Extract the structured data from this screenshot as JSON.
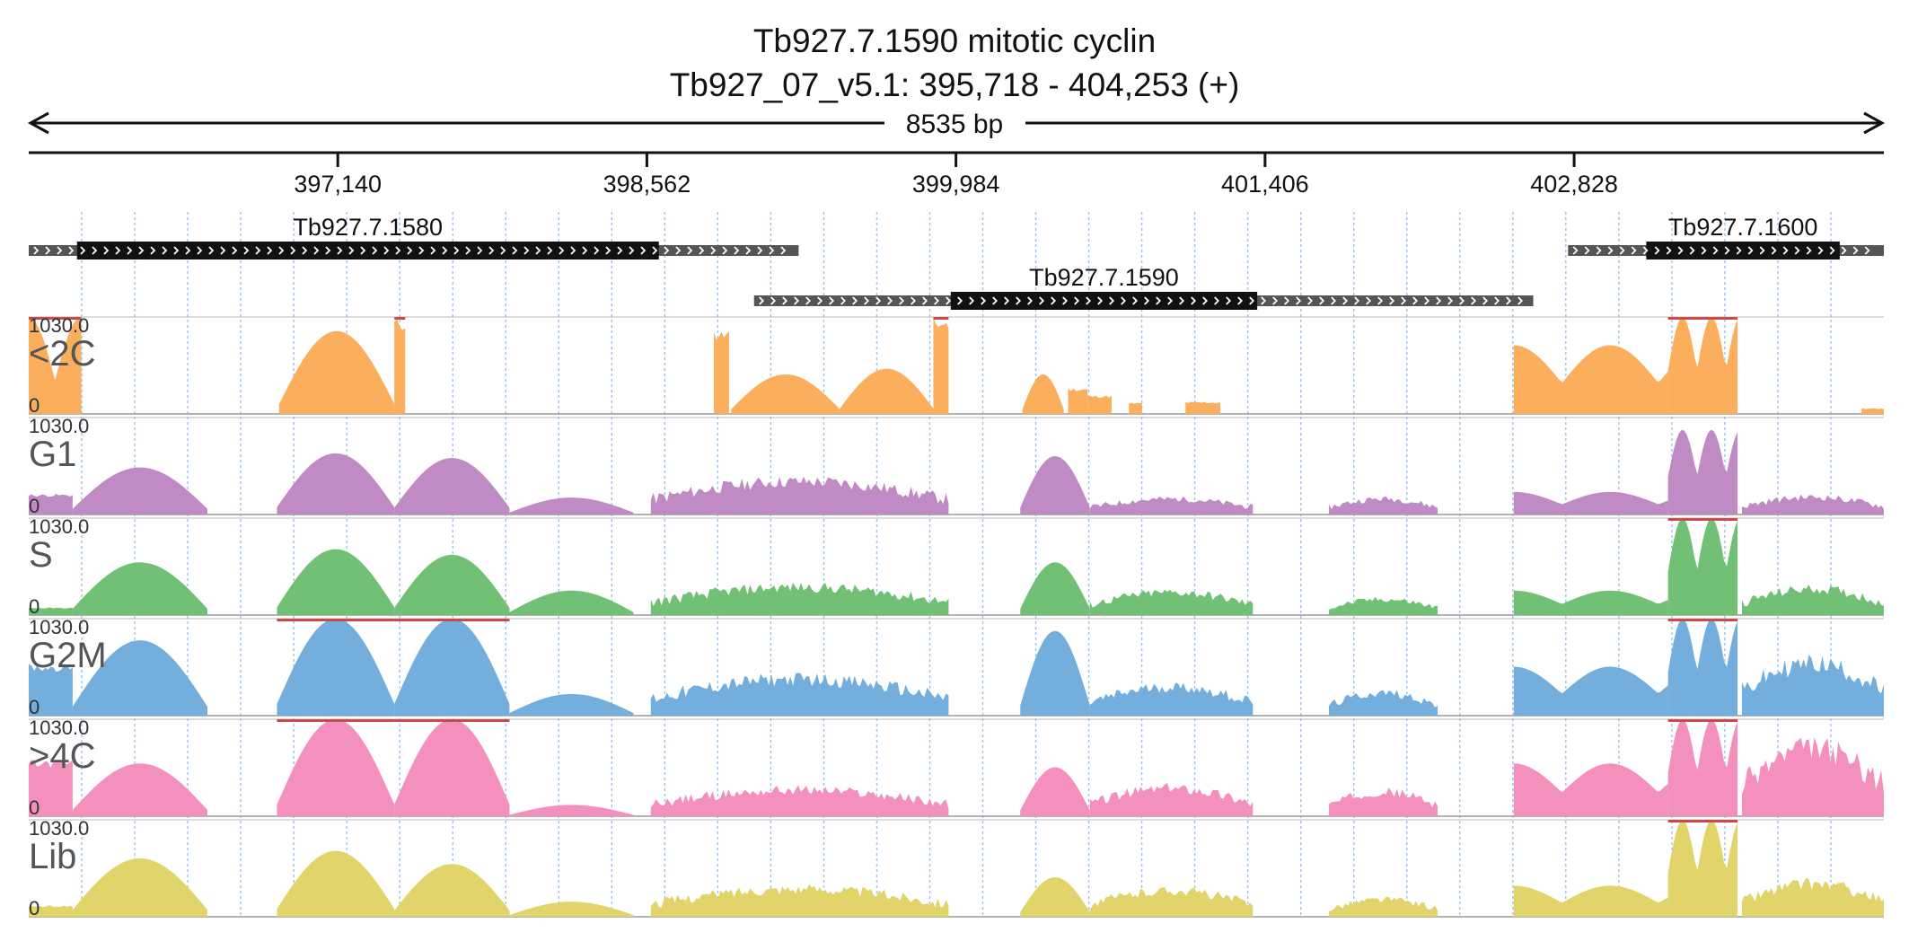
{
  "title": "Tb927.7.1590  mitotic cyclin",
  "subtitle": "Tb927_07_v5.1: 395,718 - 404,253 (+)",
  "span_label": "8535 bp",
  "chart_data": {
    "type": "area",
    "region": {
      "start": 395718,
      "end": 404253
    },
    "ticks": [
      {
        "value": 397140,
        "label": "397,140"
      },
      {
        "value": 398562,
        "label": "398,562"
      },
      {
        "value": 399984,
        "label": "399,984"
      },
      {
        "value": 401406,
        "label": "401,406"
      },
      {
        "value": 402828,
        "label": "402,828"
      }
    ],
    "genes": [
      {
        "name": "Tb927.7.1580",
        "row": 0,
        "start": 395718,
        "end": 399260,
        "cds_start": 395940,
        "cds_end": 398617
      },
      {
        "name": "Tb927.7.1590",
        "row": 1,
        "start": 399055,
        "end": 402640,
        "cds_start": 399960,
        "cds_end": 401370
      },
      {
        "name": "Tb927.7.1600",
        "row": 0,
        "start": 402800,
        "end": 404253,
        "cds_start": 403160,
        "cds_end": 404050
      }
    ],
    "track_max": "1030.0",
    "track_min": "0",
    "tracks": [
      {
        "name": "<2C",
        "color": "#fbae5c",
        "clip_color": "#c94a4a",
        "segments": [
          {
            "start": 395718,
            "end": 395960,
            "peak": 1030,
            "shape": "valley"
          },
          {
            "start": 396870,
            "end": 397400,
            "peak": 880,
            "shape": "hump"
          },
          {
            "start": 397400,
            "end": 397450,
            "peak": 1030,
            "shape": "flat"
          },
          {
            "start": 398870,
            "end": 398940,
            "peak": 900,
            "shape": "flat"
          },
          {
            "start": 398950,
            "end": 399450,
            "peak": 420,
            "shape": "hump"
          },
          {
            "start": 399450,
            "end": 399880,
            "peak": 480,
            "shape": "hump"
          },
          {
            "start": 399880,
            "end": 399950,
            "peak": 1030,
            "shape": "flat"
          },
          {
            "start": 400290,
            "end": 400480,
            "peak": 420,
            "shape": "hump"
          },
          {
            "start": 400500,
            "end": 400590,
            "peak": 280,
            "shape": "flat"
          },
          {
            "start": 400590,
            "end": 400700,
            "peak": 200,
            "shape": "flat"
          },
          {
            "start": 400780,
            "end": 400840,
            "peak": 120,
            "shape": "flat"
          },
          {
            "start": 401040,
            "end": 401200,
            "peak": 130,
            "shape": "flat"
          },
          {
            "start": 402550,
            "end": 403260,
            "peak": 730,
            "shape": "wave"
          },
          {
            "start": 403260,
            "end": 403580,
            "peak": 1030,
            "shape": "peaks"
          },
          {
            "start": 404150,
            "end": 404253,
            "peak": 60,
            "shape": "flat"
          }
        ]
      },
      {
        "name": "G1",
        "color": "#c08bc4",
        "clip_color": "#c94a4a",
        "segments": [
          {
            "start": 395718,
            "end": 395920,
            "peak": 220,
            "shape": "flat"
          },
          {
            "start": 395920,
            "end": 396540,
            "peak": 500,
            "shape": "hump"
          },
          {
            "start": 396860,
            "end": 397400,
            "peak": 650,
            "shape": "hump"
          },
          {
            "start": 397400,
            "end": 397930,
            "peak": 600,
            "shape": "hump"
          },
          {
            "start": 397930,
            "end": 398500,
            "peak": 180,
            "shape": "hump"
          },
          {
            "start": 398580,
            "end": 399950,
            "peak": 380,
            "shape": "noisy"
          },
          {
            "start": 400280,
            "end": 400600,
            "peak": 620,
            "shape": "hump"
          },
          {
            "start": 400600,
            "end": 401350,
            "peak": 180,
            "shape": "noisy"
          },
          {
            "start": 401700,
            "end": 402200,
            "peak": 180,
            "shape": "noisy"
          },
          {
            "start": 402550,
            "end": 403260,
            "peak": 240,
            "shape": "wave"
          },
          {
            "start": 403260,
            "end": 403580,
            "peak": 900,
            "shape": "peaks"
          },
          {
            "start": 403600,
            "end": 404253,
            "peak": 200,
            "shape": "noisy"
          }
        ]
      },
      {
        "name": "S",
        "color": "#72c075",
        "clip_color": "#c94a4a",
        "segments": [
          {
            "start": 395718,
            "end": 395920,
            "peak": 80,
            "shape": "flat"
          },
          {
            "start": 395920,
            "end": 396540,
            "peak": 560,
            "shape": "hump"
          },
          {
            "start": 396860,
            "end": 397400,
            "peak": 700,
            "shape": "hump"
          },
          {
            "start": 397400,
            "end": 397930,
            "peak": 640,
            "shape": "hump"
          },
          {
            "start": 397930,
            "end": 398500,
            "peak": 260,
            "shape": "hump"
          },
          {
            "start": 398580,
            "end": 399950,
            "peak": 320,
            "shape": "noisy"
          },
          {
            "start": 400280,
            "end": 400600,
            "peak": 560,
            "shape": "hump"
          },
          {
            "start": 400600,
            "end": 401350,
            "peak": 260,
            "shape": "noisy"
          },
          {
            "start": 401700,
            "end": 402200,
            "peak": 180,
            "shape": "noisy"
          },
          {
            "start": 402550,
            "end": 403260,
            "peak": 260,
            "shape": "wave"
          },
          {
            "start": 403260,
            "end": 403580,
            "peak": 1030,
            "shape": "peaks"
          },
          {
            "start": 403600,
            "end": 404253,
            "peak": 300,
            "shape": "noisy"
          }
        ]
      },
      {
        "name": "G2M",
        "color": "#73aedd",
        "clip_color": "#c94a4a",
        "segments": [
          {
            "start": 395718,
            "end": 395920,
            "peak": 550,
            "shape": "flat"
          },
          {
            "start": 395920,
            "end": 396540,
            "peak": 800,
            "shape": "hump"
          },
          {
            "start": 396860,
            "end": 397400,
            "peak": 1030,
            "shape": "hump"
          },
          {
            "start": 397400,
            "end": 397930,
            "peak": 1030,
            "shape": "hump"
          },
          {
            "start": 397930,
            "end": 398500,
            "peak": 230,
            "shape": "hump"
          },
          {
            "start": 398580,
            "end": 399950,
            "peak": 420,
            "shape": "noisy"
          },
          {
            "start": 400280,
            "end": 400600,
            "peak": 900,
            "shape": "hump"
          },
          {
            "start": 400600,
            "end": 401350,
            "peak": 330,
            "shape": "noisy"
          },
          {
            "start": 401700,
            "end": 402200,
            "peak": 260,
            "shape": "noisy"
          },
          {
            "start": 402550,
            "end": 403260,
            "peak": 520,
            "shape": "wave"
          },
          {
            "start": 403260,
            "end": 403580,
            "peak": 1030,
            "shape": "peaks"
          },
          {
            "start": 403600,
            "end": 404253,
            "peak": 600,
            "shape": "noisy"
          }
        ]
      },
      {
        "name": ">4C",
        "color": "#f490bd",
        "clip_color": "#c94a4a",
        "segments": [
          {
            "start": 395718,
            "end": 395920,
            "peak": 600,
            "shape": "flat"
          },
          {
            "start": 395920,
            "end": 396540,
            "peak": 560,
            "shape": "hump"
          },
          {
            "start": 396860,
            "end": 397400,
            "peak": 1030,
            "shape": "hump"
          },
          {
            "start": 397400,
            "end": 397930,
            "peak": 1030,
            "shape": "hump"
          },
          {
            "start": 397930,
            "end": 398500,
            "peak": 120,
            "shape": "hump"
          },
          {
            "start": 398580,
            "end": 399950,
            "peak": 300,
            "shape": "noisy"
          },
          {
            "start": 400280,
            "end": 400600,
            "peak": 520,
            "shape": "hump"
          },
          {
            "start": 400600,
            "end": 401350,
            "peak": 320,
            "shape": "noisy"
          },
          {
            "start": 401700,
            "end": 402200,
            "peak": 280,
            "shape": "noisy"
          },
          {
            "start": 402550,
            "end": 403260,
            "peak": 560,
            "shape": "wave"
          },
          {
            "start": 403260,
            "end": 403580,
            "peak": 1030,
            "shape": "peaks"
          },
          {
            "start": 403600,
            "end": 404253,
            "peak": 780,
            "shape": "noisy"
          }
        ]
      },
      {
        "name": "Lib",
        "color": "#e0d46a",
        "clip_color": "#c94a4a",
        "segments": [
          {
            "start": 395718,
            "end": 395920,
            "peak": 120,
            "shape": "flat"
          },
          {
            "start": 395920,
            "end": 396540,
            "peak": 620,
            "shape": "hump"
          },
          {
            "start": 396860,
            "end": 397400,
            "peak": 700,
            "shape": "hump"
          },
          {
            "start": 397400,
            "end": 397930,
            "peak": 560,
            "shape": "hump"
          },
          {
            "start": 397930,
            "end": 398500,
            "peak": 160,
            "shape": "hump"
          },
          {
            "start": 398580,
            "end": 399950,
            "peak": 320,
            "shape": "noisy"
          },
          {
            "start": 400280,
            "end": 400600,
            "peak": 420,
            "shape": "hump"
          },
          {
            "start": 400600,
            "end": 401350,
            "peak": 300,
            "shape": "noisy"
          },
          {
            "start": 401700,
            "end": 402200,
            "peak": 200,
            "shape": "noisy"
          },
          {
            "start": 402550,
            "end": 403260,
            "peak": 330,
            "shape": "wave"
          },
          {
            "start": 403260,
            "end": 403580,
            "peak": 1030,
            "shape": "peaks"
          },
          {
            "start": 403600,
            "end": 404253,
            "peak": 380,
            "shape": "noisy"
          }
        ]
      }
    ]
  }
}
